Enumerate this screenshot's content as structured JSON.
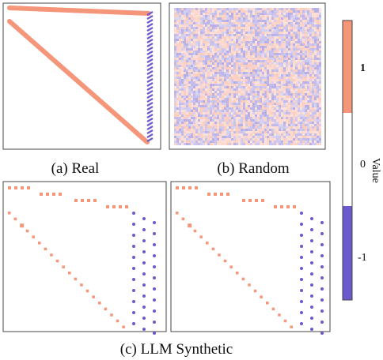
{
  "colors": {
    "positive": "#f5967a",
    "negative": "#6a5acd",
    "zero": "#ffffff",
    "frame": "#333333"
  },
  "captions": {
    "real": "(a) Real",
    "random": "(b) Random",
    "synthetic": "(c) LLM Synthetic"
  },
  "colorbar": {
    "label": "Value",
    "ticks": [
      "1",
      "0",
      "-1"
    ]
  },
  "chart_data": {
    "type": "heatmap",
    "value_range": [
      -1,
      1
    ],
    "colorbar_levels": [
      {
        "value": 1,
        "color": "#f5967a"
      },
      {
        "value": 0,
        "color": "#ffffff"
      },
      {
        "value": -1,
        "color": "#6a5acd"
      }
    ],
    "panels": [
      {
        "name": "real",
        "pattern": "dense top edge (+1), dense diagonal (+1), dense right edge (-1)"
      },
      {
        "name": "random",
        "pattern": "uniform noise of +1 and -1"
      },
      {
        "name": "synthetic_left",
        "pattern": "sparse dotted top edge (+1), diagonal (+1), right edge (-1)"
      },
      {
        "name": "synthetic_right",
        "pattern": "sparse dotted top edge (+1), diagonal (+1), right edge (-1)"
      }
    ]
  }
}
